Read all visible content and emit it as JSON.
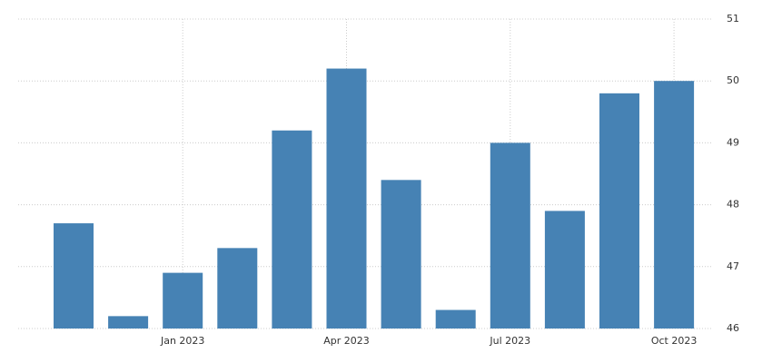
{
  "chart_data": {
    "type": "bar",
    "categories": [
      null,
      null,
      "Jan 2023",
      null,
      null,
      "Apr 2023",
      null,
      null,
      "Jul 2023",
      null,
      null,
      "Oct 2023"
    ],
    "values": [
      47.7,
      46.2,
      46.9,
      47.3,
      49.2,
      50.2,
      48.4,
      46.3,
      49.0,
      47.9,
      49.8,
      50.0
    ],
    "color": "#4682b4",
    "ylim": [
      46,
      51
    ],
    "yticks": [
      46,
      47,
      48,
      49,
      50,
      51
    ],
    "grid": true
  }
}
